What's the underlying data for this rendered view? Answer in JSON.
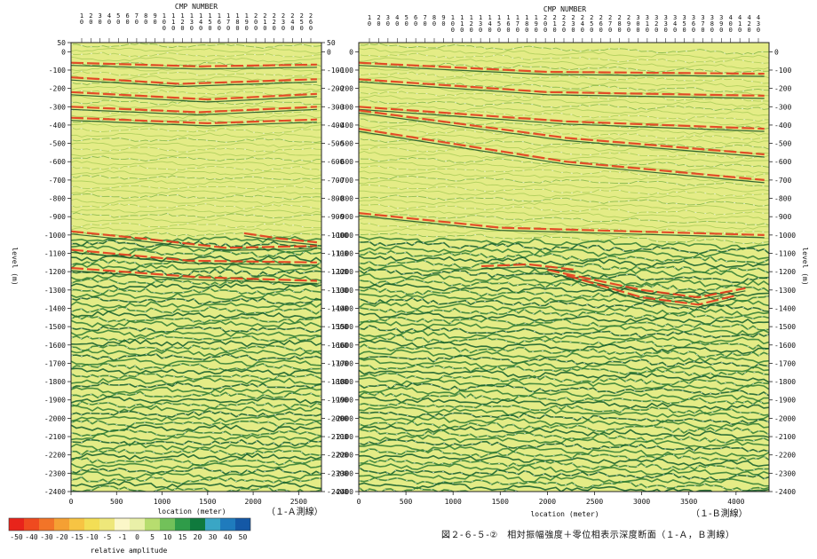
{
  "caption": "図２-６-５-②　相対振幅強度＋零位相表示深度断面（１-Ａ，Ｂ測線）",
  "colorbar": {
    "label": "relative amplitude",
    "ticks": [
      "-50",
      "-40",
      "-30",
      "-20",
      "-15",
      "-10",
      "-5",
      "-1",
      "0",
      "5",
      "10",
      "15",
      "20",
      "30",
      "40",
      "50"
    ],
    "colors": [
      "#e8241b",
      "#ef4a1f",
      "#f27428",
      "#f5a033",
      "#f7c443",
      "#f3de55",
      "#eee77a",
      "#fbf7c8",
      "#e9f0a8",
      "#b7dd6f",
      "#72c15a",
      "#2f9c49",
      "#0f7a3d",
      "#3aa6c5",
      "#1f7bbd",
      "#1458a6"
    ]
  },
  "chart_data": [
    {
      "type": "heatmap",
      "title": "CMP NUMBER",
      "line_label": "（１-Ａ測線）",
      "xlabel": "location (meter)",
      "ylabel": "level (m)",
      "xlim": [
        0,
        2750
      ],
      "ylim": [
        -2400,
        50
      ],
      "x_ticks": [
        "0",
        "500",
        "1000",
        "1500",
        "2000",
        "2500"
      ],
      "y_ticks": [
        "50",
        "0",
        "-100",
        "-200",
        "-300",
        "-400",
        "-500",
        "-600",
        "-700",
        "-800",
        "-900",
        "-1000",
        "-1100",
        "-1200",
        "-1300",
        "-1400",
        "-1500",
        "-1600",
        "-1700",
        "-1800",
        "-1900",
        "-2000",
        "-2100",
        "-2200",
        "-2300",
        "-2400"
      ],
      "cmp_numbers": [
        "10",
        "20",
        "30",
        "40",
        "50",
        "60",
        "70",
        "80",
        "90",
        "100",
        "110",
        "120",
        "130",
        "140",
        "150",
        "160",
        "170",
        "180",
        "190",
        "200",
        "210",
        "220",
        "230",
        "240",
        "250",
        "260"
      ],
      "reflectors": [
        {
          "x": [
            0,
            1400,
            2700
          ],
          "y": [
            -60,
            -80,
            -70
          ]
        },
        {
          "x": [
            0,
            1200,
            2700
          ],
          "y": [
            -140,
            -175,
            -150
          ]
        },
        {
          "x": [
            0,
            1500,
            2700
          ],
          "y": [
            -220,
            -260,
            -230
          ]
        },
        {
          "x": [
            0,
            1400,
            2700
          ],
          "y": [
            -300,
            -330,
            -300
          ]
        },
        {
          "x": [
            0,
            1500,
            2700
          ],
          "y": [
            -360,
            -390,
            -370
          ]
        },
        {
          "x": [
            0,
            800,
            1700,
            2700
          ],
          "y": [
            -980,
            -1020,
            -1070,
            -1060
          ]
        },
        {
          "x": [
            1900,
            2300,
            2700
          ],
          "y": [
            -990,
            -1020,
            -1040
          ]
        },
        {
          "x": [
            0,
            1300,
            2700
          ],
          "y": [
            -1080,
            -1140,
            -1150
          ]
        },
        {
          "x": [
            0,
            1400,
            2700
          ],
          "y": [
            -1180,
            -1230,
            -1250
          ]
        }
      ]
    },
    {
      "type": "heatmap",
      "title": "CMP NUMBER",
      "line_label": "（１-Ｂ測線）",
      "xlabel": "location (meter)",
      "ylabel": "level (m)",
      "xlim": [
        0,
        4350
      ],
      "ylim": [
        -2400,
        50
      ],
      "x_ticks": [
        "0",
        "500",
        "1000",
        "1500",
        "2000",
        "2500",
        "3000",
        "3500",
        "4000"
      ],
      "y_ticks": [
        "0",
        "-100",
        "-200",
        "-300",
        "-400",
        "-500",
        "-600",
        "-700",
        "-800",
        "-900",
        "-1000",
        "-1100",
        "-1200",
        "-1300",
        "-1400",
        "-1500",
        "-1600",
        "-1700",
        "-1800",
        "-1900",
        "-2000",
        "-2100",
        "-2200",
        "-2300",
        "-2400"
      ],
      "cmp_numbers": [
        "10",
        "20",
        "30",
        "40",
        "50",
        "60",
        "70",
        "80",
        "90",
        "100",
        "110",
        "120",
        "130",
        "140",
        "150",
        "160",
        "170",
        "180",
        "190",
        "200",
        "210",
        "220",
        "230",
        "240",
        "250",
        "260",
        "270",
        "280",
        "290",
        "300",
        "310",
        "320",
        "330",
        "340",
        "350",
        "360",
        "370",
        "380",
        "390",
        "400",
        "410",
        "420",
        "430"
      ],
      "reflectors": [
        {
          "x": [
            0,
            2000,
            4300
          ],
          "y": [
            -60,
            -110,
            -120
          ]
        },
        {
          "x": [
            0,
            2000,
            4300
          ],
          "y": [
            -150,
            -220,
            -240
          ]
        },
        {
          "x": [
            0,
            2200,
            4300
          ],
          "y": [
            -300,
            -380,
            -420
          ]
        },
        {
          "x": [
            0,
            2200,
            4300
          ],
          "y": [
            -320,
            -470,
            -560
          ]
        },
        {
          "x": [
            0,
            2200,
            4300
          ],
          "y": [
            -420,
            -600,
            -700
          ]
        },
        {
          "x": [
            0,
            1500,
            4300
          ],
          "y": [
            -880,
            -960,
            -1000
          ]
        },
        {
          "x": [
            1300,
            1800,
            2300
          ],
          "y": [
            -1170,
            -1160,
            -1190
          ]
        },
        {
          "x": [
            2000,
            3000,
            3600,
            4100
          ],
          "y": [
            -1190,
            -1300,
            -1340,
            -1290
          ]
        },
        {
          "x": [
            2200,
            3000,
            3600,
            4000
          ],
          "y": [
            -1220,
            -1340,
            -1380,
            -1330
          ]
        }
      ]
    }
  ]
}
